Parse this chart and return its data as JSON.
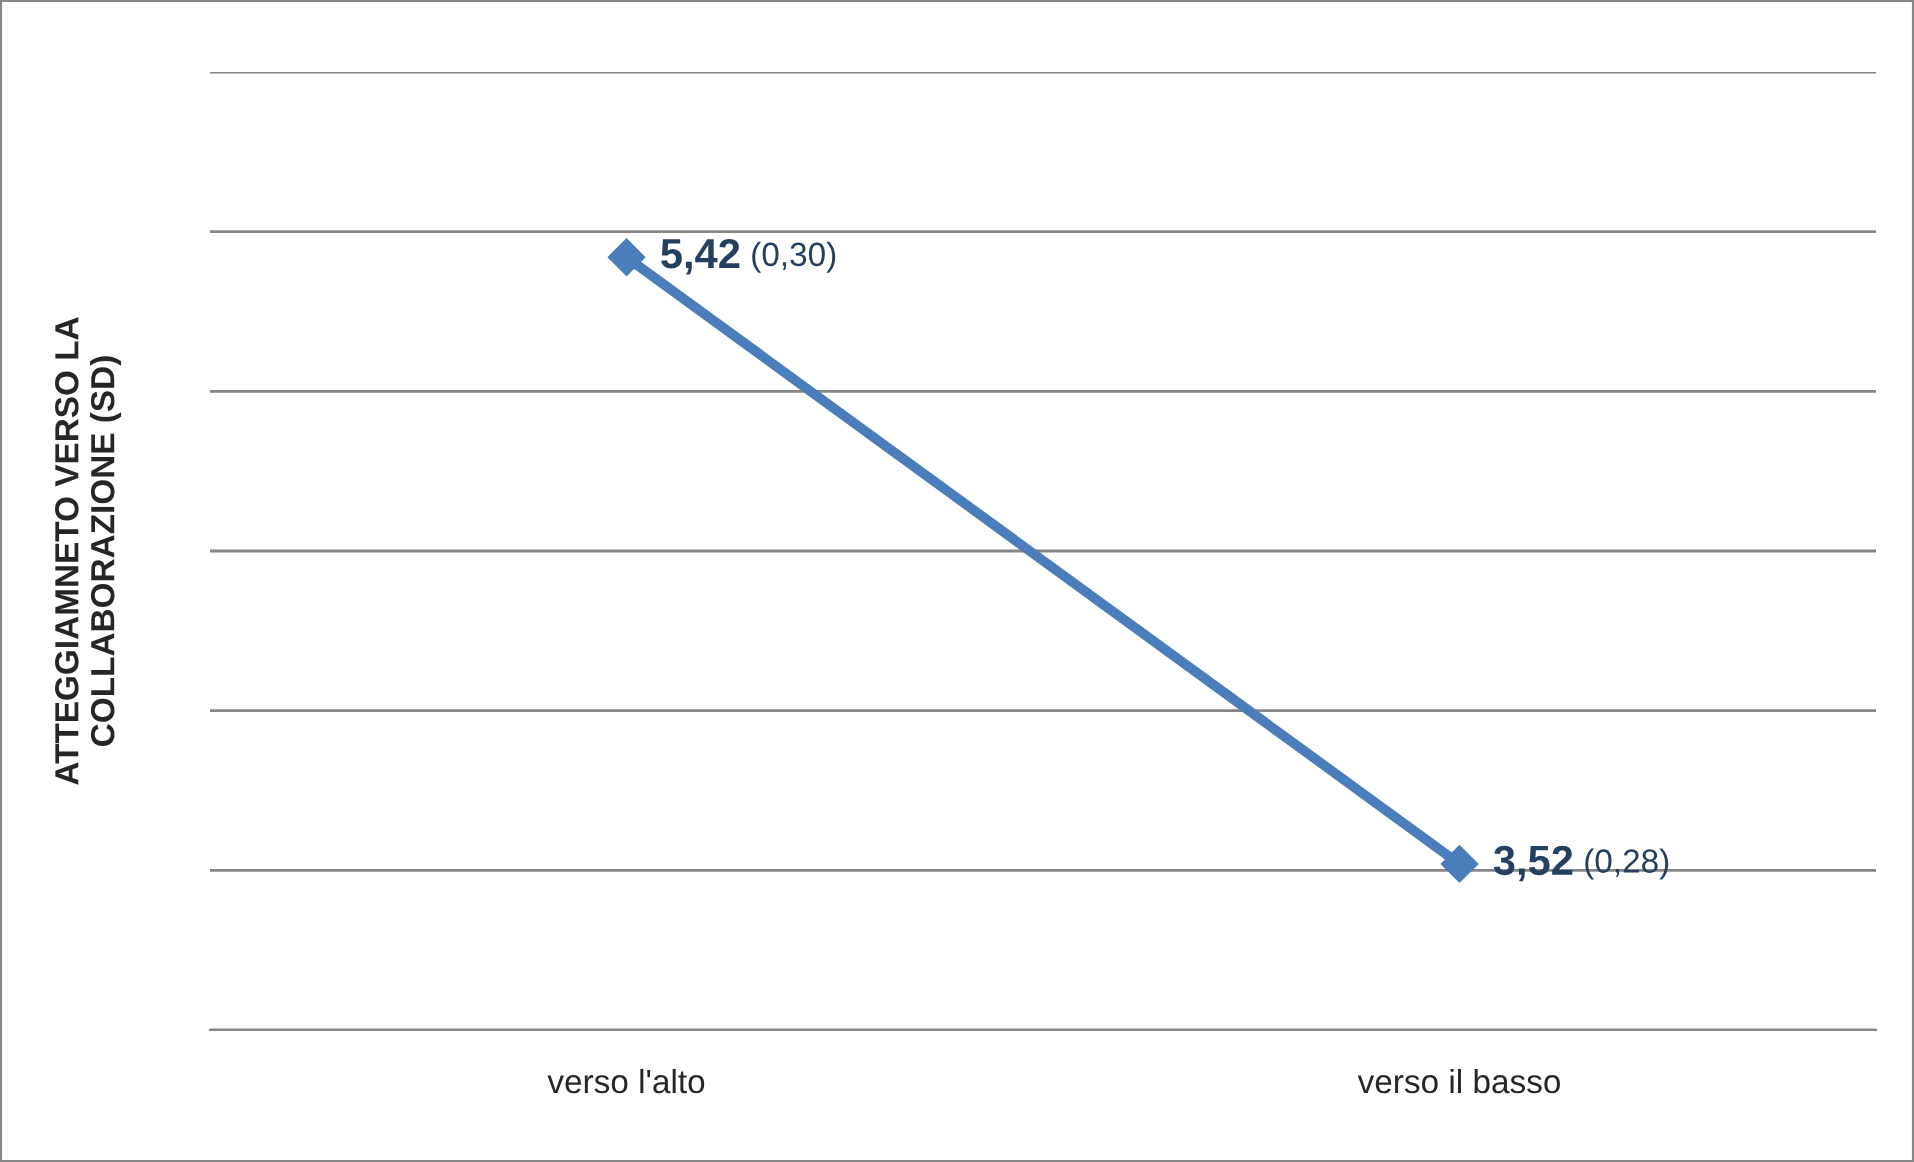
{
  "chart_data": {
    "type": "line",
    "ylabel": "ATTEGGIAMNETO VERSO LA\nCOLLABORAZIONE (SD)",
    "categories": [
      "verso l'alto",
      "verso il basso"
    ],
    "series": [
      {
        "color": "#4a7ebb",
        "values": [
          5.42,
          3.52
        ],
        "value_labels": [
          "5,42 (0,30)",
          "3,52 (0,28)"
        ]
      }
    ],
    "ylim": [
      3,
      6
    ],
    "yticks": [
      {
        "value": 3,
        "label": null
      },
      {
        "value": 3.5,
        "label": null
      },
      {
        "value": 4,
        "label": null
      },
      {
        "value": 4.5,
        "label": null
      },
      {
        "value": 5,
        "label": null
      },
      {
        "value": 5.5,
        "label": null
      },
      {
        "value": 6,
        "label": null
      }
    ],
    "grid": "y",
    "marker": "diamond",
    "line_style": "solid",
    "legend": false
  }
}
